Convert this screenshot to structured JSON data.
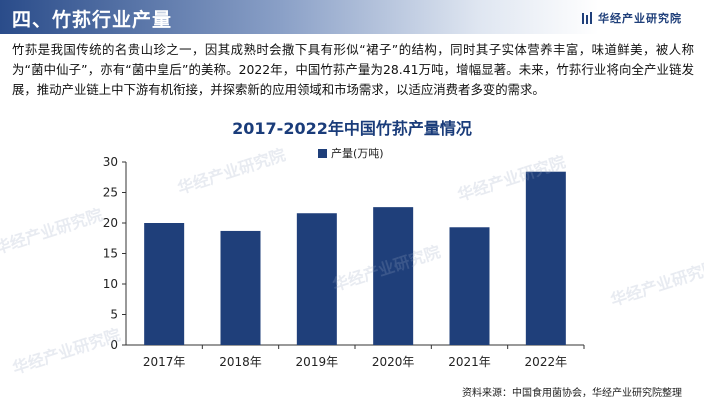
{
  "header": {
    "section_title": "四、竹荪行业产量",
    "brand_name": "华经产业研究院",
    "brand_logo_icon": "bar-stripes-logo-icon",
    "accent_color": "#1f3f7a"
  },
  "intro_text": "竹荪是我国传统的名贵山珍之一，因其成熟时会撒下具有形似“裙子”的结构，同时其子实体营养丰富，味道鲜美，被人称为“菌中仙子”，亦有“菌中皇后”的美称。2022年，中国竹荪产量为28.41万吨，增幅显著。未来，竹荪行业将向全产业链发展，推动产业链上中下游有机衔接，并探索新的应用领域和市场需求，以适应消费者多变的需求。",
  "watermark_text": "华经产业研究院",
  "chart_data": {
    "type": "bar",
    "title": "2017-2022年中国竹荪产量情况",
    "categories": [
      "2017年",
      "2018年",
      "2019年",
      "2020年",
      "2021年",
      "2022年"
    ],
    "series": [
      {
        "name": "产量(万吨)",
        "values": [
          20.0,
          18.7,
          21.6,
          22.6,
          19.3,
          28.41
        ],
        "color": "#1f3f7a"
      }
    ],
    "xlabel": "",
    "ylabel": "",
    "ylim": [
      0,
      30
    ],
    "yticks": [
      0,
      5,
      10,
      15,
      20,
      25,
      30
    ],
    "grid": false,
    "legend_position": "top-right"
  },
  "source_text": "资料来源：中国食用菌协会，华经产业研究院整理"
}
